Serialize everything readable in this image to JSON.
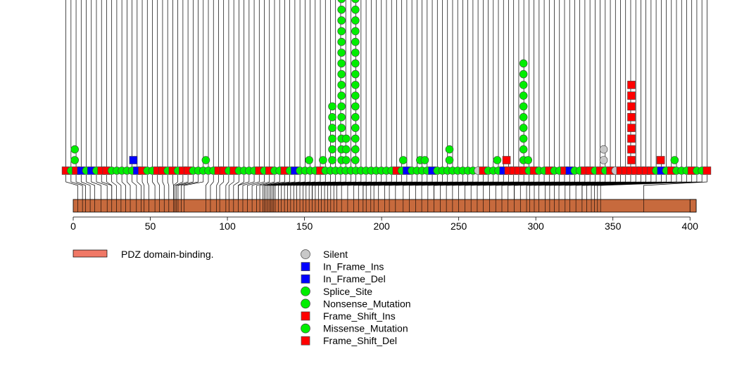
{
  "chart_data": {
    "type": "lollipop",
    "title": "",
    "xlabel": "",
    "ylabel": "",
    "xlim": [
      0,
      404
    ],
    "protein_length": 404,
    "x_ticks": [
      0,
      50,
      100,
      150,
      200,
      250,
      300,
      350,
      400
    ],
    "x_tick_labels": [
      "0",
      "50",
      "100",
      "150",
      "200",
      "250",
      "300",
      "350",
      "400"
    ],
    "domains": [
      {
        "name": "PDZ domain-binding.",
        "start": 400,
        "end": 404,
        "color": "#c76a3d",
        "legend_color": "#f07866"
      }
    ],
    "mutation_types": [
      {
        "name": "Silent",
        "shape": "circle",
        "color": "#c8c8c8"
      },
      {
        "name": "In_Frame_Ins",
        "shape": "square",
        "color": "#0000ff"
      },
      {
        "name": "In_Frame_Del",
        "shape": "square",
        "color": "#0000ff"
      },
      {
        "name": "Splice_Site",
        "shape": "circle",
        "color": "#00ee00"
      },
      {
        "name": "Nonsense_Mutation",
        "shape": "circle",
        "color": "#00ee00"
      },
      {
        "name": "Frame_Shift_Ins",
        "shape": "square",
        "color": "#ff0000"
      },
      {
        "name": "Frame_Shift_Del",
        "shape": "square",
        "color": "#ff0000"
      },
      {
        "name": "Missense_Mutation",
        "shape": "circle",
        "color": "#00ee00"
      }
    ],
    "legend_order": [
      "Silent",
      "In_Frame_Ins",
      "In_Frame_Del",
      "Splice_Site",
      "Nonsense_Mutation",
      "Frame_Shift_Ins",
      "Missense_Mutation",
      "Frame_Shift_Del"
    ],
    "stacks": [
      {
        "pos": 1,
        "kinds": [
          "circle:green",
          "circle:green"
        ]
      },
      {
        "pos": 39,
        "kinds": [
          "square:blue"
        ]
      },
      {
        "pos": 86,
        "kinds": [
          "circle:green"
        ]
      },
      {
        "pos": 153,
        "kinds": [
          "circle:green"
        ]
      },
      {
        "pos": 162,
        "kinds": [
          "circle:green"
        ]
      },
      {
        "pos": 168,
        "kinds": [
          "circle:green",
          "circle:green",
          "circle:green",
          "circle:green",
          "circle:green",
          "circle:green"
        ]
      },
      {
        "pos": 174,
        "kinds": [
          "circle:green",
          "circle:green",
          "circle:green",
          "circle:green",
          "circle:green",
          "circle:green",
          "circle:green",
          "circle:green",
          "circle:green",
          "circle:green",
          "circle:green",
          "circle:green",
          "circle:green",
          "circle:green",
          "circle:green",
          "circle:green"
        ]
      },
      {
        "pos": 177,
        "kinds": [
          "circle:green",
          "circle:green",
          "circle:green"
        ]
      },
      {
        "pos": 183,
        "kinds": [
          "circle:green",
          "circle:green",
          "circle:green",
          "circle:green",
          "circle:green",
          "circle:green",
          "circle:green",
          "circle:green",
          "circle:green",
          "circle:green",
          "circle:green",
          "circle:green",
          "circle:green",
          "circle:green",
          "circle:green",
          "circle:green"
        ]
      },
      {
        "pos": 214,
        "kinds": [
          "circle:green"
        ]
      },
      {
        "pos": 225,
        "kinds": [
          "circle:green"
        ]
      },
      {
        "pos": 228,
        "kinds": [
          "circle:green"
        ]
      },
      {
        "pos": 244,
        "kinds": [
          "circle:green",
          "circle:green"
        ]
      },
      {
        "pos": 275,
        "kinds": [
          "circle:green"
        ]
      },
      {
        "pos": 281,
        "kinds": [
          "square:red"
        ]
      },
      {
        "pos": 292,
        "kinds": [
          "circle:green",
          "circle:green",
          "circle:green",
          "circle:green",
          "circle:green",
          "circle:green",
          "circle:green",
          "circle:green",
          "circle:green",
          "circle:green"
        ]
      },
      {
        "pos": 295,
        "kinds": [
          "circle:green"
        ]
      },
      {
        "pos": 344,
        "kinds": [
          "circle:gray",
          "circle:gray"
        ]
      },
      {
        "pos": 362,
        "kinds": [
          "square:red",
          "square:red",
          "square:red",
          "square:red",
          "square:red",
          "square:red",
          "square:red",
          "square:red"
        ]
      },
      {
        "pos": 381,
        "kinds": [
          "square:red"
        ]
      },
      {
        "pos": 390,
        "kinds": [
          "circle:green"
        ]
      }
    ],
    "baseline_markers": [
      "square:red",
      "circle:green",
      "square:red",
      "square:blue",
      "circle:green",
      "square:blue",
      "circle:green",
      "square:red",
      "square:red",
      "circle:green",
      "circle:green",
      "circle:green",
      "circle:green",
      "circle:green",
      "square:blue",
      "square:red",
      "circle:green",
      "circle:green",
      "square:red",
      "square:red",
      "circle:green",
      "square:red",
      "circle:green",
      "square:red",
      "square:red",
      "circle:green",
      "circle:green",
      "circle:green",
      "circle:green",
      "circle:green",
      "square:red",
      "square:red",
      "circle:green",
      "square:red",
      "circle:green",
      "circle:green",
      "circle:green",
      "circle:green",
      "square:red",
      "circle:green",
      "square:red",
      "circle:green",
      "circle:green",
      "square:red",
      "circle:green",
      "square:blue",
      "circle:green",
      "circle:green",
      "circle:green",
      "circle:green",
      "square:red",
      "circle:green",
      "circle:green",
      "circle:green",
      "circle:green",
      "circle:green",
      "circle:green",
      "circle:green",
      "circle:green",
      "circle:green",
      "circle:green",
      "circle:green",
      "circle:green",
      "circle:green",
      "circle:green",
      "square:red",
      "circle:green",
      "square:blue",
      "circle:green",
      "circle:green",
      "circle:green",
      "circle:green",
      "square:blue",
      "circle:green",
      "circle:green",
      "circle:green",
      "circle:green",
      "circle:green",
      "circle:green",
      "circle:green",
      "circle:green",
      "circle:gray",
      "square:red",
      "circle:green",
      "circle:green",
      "circle:green",
      "square:blue",
      "square:red",
      "square:red",
      "square:red",
      "square:red",
      "circle:green",
      "square:red",
      "circle:green",
      "circle:green",
      "square:red",
      "circle:green",
      "circle:green",
      "square:red",
      "square:blue",
      "circle:green",
      "circle:green",
      "square:red",
      "square:red",
      "circle:green",
      "square:red",
      "circle:green",
      "square:red",
      "circle:gray",
      "square:red",
      "square:red",
      "square:red",
      "square:red",
      "square:red",
      "square:red",
      "square:red",
      "circle:green",
      "square:blue",
      "circle:green",
      "square:red",
      "circle:green",
      "circle:green",
      "circle:green",
      "square:red",
      "circle:green",
      "circle:green",
      "square:red"
    ],
    "domain_tick_positions": [
      3,
      6,
      8,
      11,
      14,
      18,
      22,
      25,
      28,
      31,
      34,
      37,
      41,
      44,
      46,
      49,
      53,
      56,
      59,
      62,
      65,
      66,
      67,
      68,
      70,
      72,
      86,
      89,
      93,
      95,
      99,
      101,
      104,
      107,
      110,
      113,
      116,
      119,
      121,
      123,
      124,
      125,
      126,
      127,
      128,
      129,
      130,
      131,
      133,
      135,
      137,
      139,
      141,
      143,
      145,
      147,
      149,
      151,
      153,
      155,
      157,
      159,
      161,
      163,
      165,
      167,
      169,
      171,
      174,
      178,
      182,
      185,
      188,
      190,
      193,
      195,
      198,
      202,
      205,
      209,
      214,
      218,
      222,
      226,
      230,
      234,
      238,
      242,
      246,
      250,
      254,
      258,
      262,
      266,
      270,
      274,
      278,
      282,
      286,
      290,
      294,
      296,
      299,
      302,
      306,
      309,
      312,
      315,
      319,
      322,
      326,
      330,
      333,
      336,
      338,
      340,
      342,
      370
    ],
    "legend_title_domain": "PDZ domain-binding."
  }
}
